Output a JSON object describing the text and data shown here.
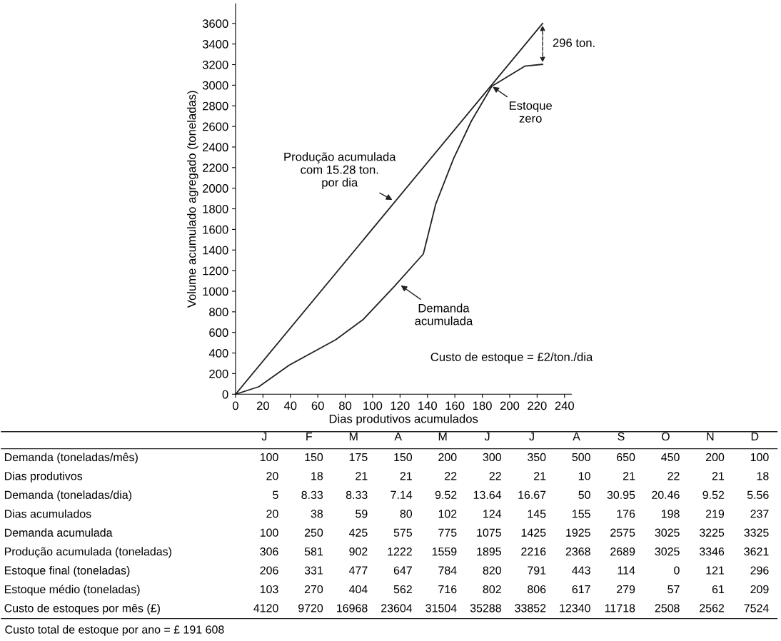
{
  "chart_data": [
    {
      "type": "line",
      "xlabel": "Dias produtivos acumulados",
      "ylabel": "Volume acumulado agregado (toneladas)",
      "series": [
        {
          "color": "#222222",
          "x": [
            0,
            224
          ],
          "values": [
            0,
            3600
          ]
        },
        {
          "color": "#222222",
          "x": [
            0,
            17,
            28,
            39,
            73,
            93,
            116,
            137,
            146,
            159,
            172,
            187,
            211,
            224
          ],
          "values": [
            0,
            73,
            177,
            281,
            529,
            724,
            1049,
            1362,
            1844,
            2286,
            2651,
            2990,
            3185,
            3203
          ]
        }
      ],
      "xlim": [
        0,
        245
      ],
      "xticks": [
        0,
        20,
        40,
        60,
        80,
        100,
        120,
        140,
        160,
        180,
        200,
        220,
        240
      ],
      "ylim": [
        0,
        3790
      ],
      "yticks": [
        0,
        200,
        400,
        600,
        800,
        1000,
        1200,
        1400,
        1600,
        1800,
        2000,
        2200,
        2400,
        2600,
        2800,
        3000,
        3200,
        3400,
        3600
      ],
      "grid": false,
      "annotations": [
        "296 ton.",
        {
          "text": "Estoque\nzero",
          "x": 187,
          "y": 2990
        },
        {
          "text": "Produção acumulada\ncom 15.28 ton.\npor dia",
          "x": 115,
          "y": 1882
        },
        {
          "text": "Demanda\nacumulada",
          "x": 120,
          "y": 1062
        },
        "Custo de estoque = £2/ton./dia"
      ]
    },
    {
      "type": "heatmap",
      "data_labels": true,
      "categories": [
        "J",
        "F",
        "M",
        "A",
        "M",
        "J",
        "J",
        "A",
        "S",
        "O",
        "N",
        "D"
      ],
      "y_categories": [
        "Demanda (toneladas/mês)",
        "Dias produtivos",
        "Demanda (toneladas/dia)",
        "Dias acumulados",
        "Demanda acumulada",
        "Produção acumulada (toneladas)",
        "Estoque final (toneladas)",
        "Estoque médio (toneladas)",
        "Custo de estoques por mês (£)"
      ],
      "cells": [
        [
          100,
          150,
          175,
          150,
          200,
          300,
          350,
          500,
          650,
          450,
          200,
          100
        ],
        [
          20,
          18,
          21,
          21,
          22,
          22,
          21,
          10,
          21,
          22,
          21,
          18
        ],
        [
          5,
          8.33,
          8.33,
          7.14,
          9.52,
          13.64,
          16.67,
          50,
          30.95,
          20.46,
          9.52,
          5.56
        ],
        [
          20,
          38,
          59,
          80,
          102,
          124,
          145,
          155,
          176,
          198,
          219,
          237
        ],
        [
          100,
          250,
          425,
          575,
          775,
          1075,
          1425,
          1925,
          2575,
          3025,
          3225,
          3325
        ],
        [
          306,
          581,
          902,
          1222,
          1559,
          1895,
          2216,
          2368,
          2689,
          3025,
          3346,
          3621
        ],
        [
          206,
          331,
          477,
          647,
          784,
          820,
          791,
          443,
          114,
          0,
          121,
          296
        ],
        [
          103,
          270,
          404,
          562,
          716,
          802,
          806,
          617,
          279,
          57,
          61,
          209
        ],
        [
          4120,
          9720,
          16968,
          23604,
          31504,
          35288,
          33852,
          12340,
          11718,
          2508,
          2562,
          7524
        ]
      ],
      "annotations": [
        "Custo total de estoque por ano = £ 191 608"
      ]
    }
  ]
}
